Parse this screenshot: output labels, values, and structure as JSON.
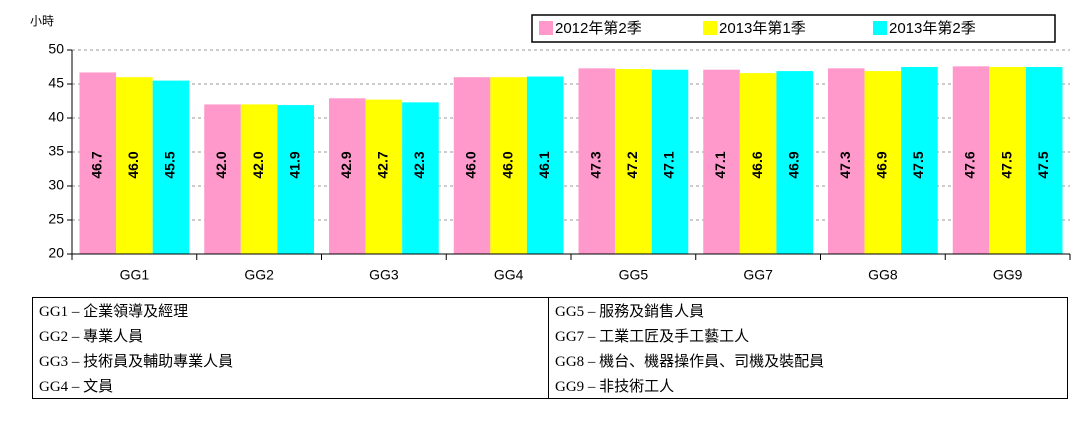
{
  "chart_data": {
    "type": "bar",
    "y_label": "小時",
    "categories": [
      "GG1",
      "GG2",
      "GG3",
      "GG4",
      "GG5",
      "GG7",
      "GG8",
      "GG9"
    ],
    "series": [
      {
        "name": "2012年第2季",
        "color": "#ff99cc",
        "values": [
          46.7,
          42.0,
          42.9,
          46.0,
          47.3,
          47.1,
          47.3,
          47.6
        ],
        "value_labels": [
          "46.7",
          "42.0",
          "42.9",
          "46.0",
          "47.3",
          "47.1",
          "47.3",
          "47.6"
        ]
      },
      {
        "name": "2013年第1季",
        "color": "#ffff00",
        "values": [
          46.0,
          42.0,
          42.7,
          46.0,
          47.2,
          46.6,
          46.9,
          47.5
        ],
        "value_labels": [
          "46.0",
          "42.0",
          "42.7",
          "46.0",
          "47.2",
          "46.6",
          "46.9",
          "47.5"
        ]
      },
      {
        "name": "2013年第2季",
        "color": "#00ffff",
        "values": [
          45.5,
          41.9,
          42.3,
          46.1,
          47.1,
          46.9,
          47.5,
          47.5
        ],
        "value_labels": [
          "45.5",
          "41.9",
          "42.3",
          "46.1",
          "47.1",
          "46.9",
          "47.5",
          "47.5"
        ]
      }
    ],
    "ylim": [
      20,
      50
    ],
    "yticks": [
      20,
      25,
      30,
      35,
      40,
      45,
      50
    ],
    "grid": true,
    "legend": "top-right"
  },
  "footnote_table": {
    "rows": [
      [
        "GG1 – 企業領導及經理",
        "GG5 – 服務及銷售人員"
      ],
      [
        "GG2 – 專業人員",
        "GG7 – 工業工匠及手工藝工人"
      ],
      [
        "GG3 – 技術員及輔助專業人員",
        "GG8 – 機台、機器操作員、司機及裝配員"
      ],
      [
        "GG4 – 文員",
        "GG9 – 非技術工人"
      ]
    ]
  }
}
